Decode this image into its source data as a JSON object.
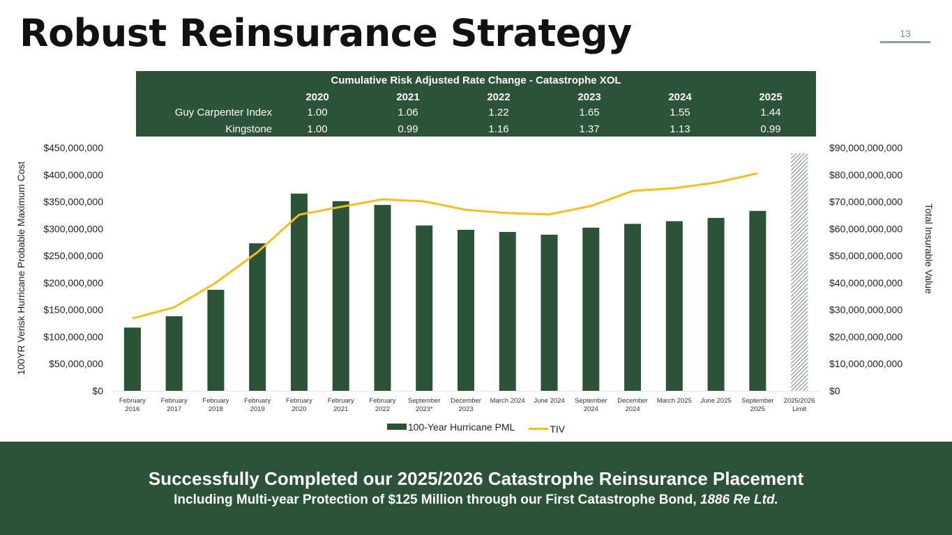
{
  "header": {
    "title": "Robust Reinsurance Strategy",
    "page_number": "13"
  },
  "rate_table": {
    "title": "Cumulative Risk Adjusted Rate Change - Catastrophe XOL",
    "years": [
      "2020",
      "2021",
      "2022",
      "2023",
      "2024",
      "2025"
    ],
    "rows": [
      {
        "label": "Guy Carpenter Index",
        "values": [
          "1.00",
          "1.06",
          "1.22",
          "1.65",
          "1.55",
          "1.44"
        ]
      },
      {
        "label": "Kingstone",
        "values": [
          "1.00",
          "0.99",
          "1.16",
          "1.37",
          "1.13",
          "0.99"
        ]
      }
    ]
  },
  "chart_data": {
    "type": "bar",
    "title": "",
    "categories": [
      [
        "February",
        "2016"
      ],
      [
        "February",
        "2017"
      ],
      [
        "February",
        "2018"
      ],
      [
        "February",
        "2019"
      ],
      [
        "February",
        "2020"
      ],
      [
        "February",
        "2021"
      ],
      [
        "February",
        "2022"
      ],
      [
        "September",
        "2023*"
      ],
      [
        "December",
        "2023"
      ],
      [
        "March 2024"
      ],
      [
        "June 2024"
      ],
      [
        "September",
        "2024"
      ],
      [
        "December",
        "2024"
      ],
      [
        "March 2025"
      ],
      [
        "June 2025"
      ],
      [
        "September",
        "2025"
      ],
      [
        "2025/2026",
        "Limit"
      ]
    ],
    "ylabel": "100YR Verisk Hurricane Probable Maximum Cost",
    "y2label": "Total Insurable Value",
    "ylim": [
      0,
      450000000
    ],
    "y2lim": [
      0,
      90000000000
    ],
    "yticks": [
      "$0",
      "$50,000,000",
      "$100,000,000",
      "$150,000,000",
      "$200,000,000",
      "$250,000,000",
      "$300,000,000",
      "$350,000,000",
      "$400,000,000",
      "$450,000,000"
    ],
    "y2ticks": [
      "$0",
      "$10,000,000,000",
      "$20,000,000,000",
      "$30,000,000,000",
      "$40,000,000,000",
      "$50,000,000,000",
      "$60,000,000,000",
      "$70,000,000,000",
      "$80,000,000,000",
      "$90,000,000,000"
    ],
    "grid": false,
    "legend_position": "bottom",
    "series": [
      {
        "name": "100-Year Hurricane PML",
        "type": "bar",
        "axis": "left",
        "color": "#2c5237",
        "values": [
          117000000,
          138000000,
          187000000,
          273000000,
          365000000,
          351000000,
          344000000,
          306000000,
          298000000,
          294000000,
          289000000,
          302000000,
          309000000,
          314000000,
          320000000,
          333000000,
          null
        ]
      },
      {
        "name": "2025/2026 Limit",
        "type": "bar-hatched",
        "axis": "left",
        "color": "#2c5237",
        "values": [
          null,
          null,
          null,
          null,
          null,
          null,
          null,
          null,
          null,
          null,
          null,
          null,
          null,
          null,
          null,
          null,
          440000000
        ]
      },
      {
        "name": "TIV",
        "type": "line",
        "axis": "right",
        "color": "#f5be1b",
        "values": [
          26800000000,
          30900000000,
          40000000000,
          51300000000,
          65200000000,
          68100000000,
          70900000000,
          70100000000,
          67000000000,
          65800000000,
          65300000000,
          68400000000,
          74000000000,
          75000000000,
          77100000000,
          80500000000,
          null
        ]
      }
    ],
    "legend": [
      "100-Year Hurricane PML",
      "TIV"
    ]
  },
  "footer": {
    "line1": "Successfully Completed our 2025/2026 Catastrophe Reinsurance Placement",
    "line2_prefix": "Including Multi-year Protection of $125 Million through our First Catastrophe Bond, ",
    "line2_emphasis": "1886 Re Ltd."
  }
}
